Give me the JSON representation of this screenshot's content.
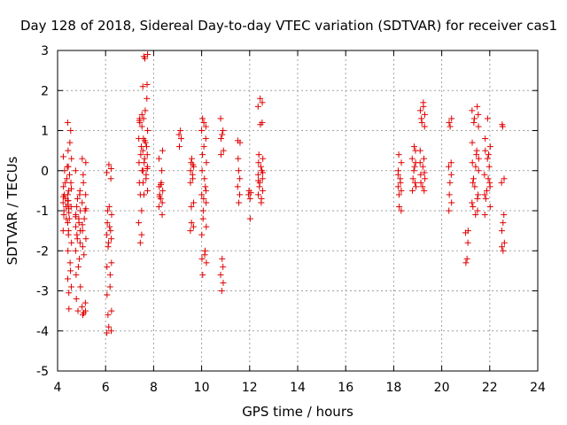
{
  "chart_data": {
    "type": "scatter",
    "title": "Day 128 of 2018, Sidereal Day-to-day VTEC variation (SDTVAR) for receiver cas1",
    "xlabel": "GPS time / hours",
    "ylabel": "SDTVAR / TECUs",
    "xlim": [
      4,
      24
    ],
    "ylim": [
      -5,
      3
    ],
    "xticks": [
      4,
      6,
      8,
      10,
      12,
      14,
      16,
      18,
      20,
      22,
      24
    ],
    "yticks": [
      -5,
      -4,
      -3,
      -2,
      -1,
      0,
      1,
      2,
      3
    ],
    "grid": true,
    "marker": "+",
    "color": "#e00000",
    "clusters": [
      {
        "x": 4.35,
        "spread": 0.12,
        "values": [
          0.35,
          0.1,
          -0.2,
          -0.4,
          -0.5,
          -0.6,
          -0.7,
          -0.75,
          -0.8,
          -0.85,
          -0.9,
          -1.0,
          -1.05,
          -1.1,
          -1.2,
          -1.3,
          -1.5,
          -1.6,
          -0.3,
          0.0,
          -0.95,
          -0.65
        ]
      },
      {
        "x": 4.5,
        "spread": 0.08,
        "values": [
          1.2,
          1.0,
          0.7,
          0.5,
          0.3,
          0.1,
          -0.1,
          -0.3,
          -0.6,
          -0.9,
          -1.2,
          -1.5,
          -1.8,
          -2.0,
          -2.3,
          -2.5,
          -2.7,
          -2.9,
          -3.05,
          -3.45,
          -0.45,
          -0.75
        ]
      },
      {
        "x": 4.85,
        "spread": 0.1,
        "values": [
          0.0,
          -0.5,
          -0.7,
          -0.9,
          -1.0,
          -1.1,
          -1.2,
          -1.3,
          -1.4,
          -1.5,
          -1.6,
          -1.7,
          -1.8,
          -2.0,
          -2.2,
          -2.4,
          -2.6,
          -2.9,
          -3.2,
          -3.5,
          -0.6,
          -1.15
        ]
      },
      {
        "x": 5.1,
        "spread": 0.08,
        "values": [
          0.3,
          0.2,
          -0.1,
          -0.3,
          -0.6,
          -0.8,
          -1.0,
          -1.2,
          -1.5,
          -1.7,
          -1.9,
          -2.1,
          -3.3,
          -3.4,
          -3.5,
          -3.55,
          -3.6,
          -0.95,
          -1.35
        ]
      },
      {
        "x": 6.15,
        "spread": 0.1,
        "values": [
          0.15,
          0.05,
          -0.05,
          -0.2,
          -0.9,
          -1.0,
          -1.1,
          -1.3,
          -1.4,
          -1.5,
          -1.6,
          -1.7,
          -1.8,
          -1.9,
          -2.3,
          -2.4,
          -2.6,
          -2.9,
          -3.1,
          -3.5,
          -3.6,
          -3.9,
          -4.0,
          -4.05
        ]
      },
      {
        "x": 7.45,
        "spread": 0.07,
        "values": [
          1.4,
          1.3,
          1.2,
          1.1,
          0.8,
          0.6,
          0.4,
          0.2,
          0.0,
          -0.3,
          -0.6,
          -1.0,
          -1.3,
          -1.6,
          -1.8,
          1.25
        ]
      },
      {
        "x": 7.65,
        "spread": 0.1,
        "values": [
          2.9,
          2.85,
          2.8,
          2.15,
          2.1,
          1.8,
          1.5,
          1.3,
          1.0,
          0.8,
          0.7,
          0.6,
          0.5,
          0.4,
          0.3,
          0.2,
          0.1,
          0.0,
          -0.1,
          -0.2,
          -0.3,
          -0.5,
          -0.6,
          0.75,
          0.05
        ]
      },
      {
        "x": 8.3,
        "spread": 0.08,
        "values": [
          0.5,
          0.3,
          0.0,
          -0.3,
          -0.4,
          -0.5,
          -0.6,
          -0.7,
          -0.8,
          -0.9,
          -1.1,
          -0.35,
          -0.65
        ]
      },
      {
        "x": 9.1,
        "spread": 0.05,
        "values": [
          1.0,
          0.9,
          0.8,
          0.6
        ]
      },
      {
        "x": 9.6,
        "spread": 0.07,
        "values": [
          0.3,
          0.2,
          0.1,
          0.0,
          -0.1,
          -0.2,
          -0.3,
          -0.8,
          -0.9,
          -1.3,
          -1.4,
          -1.5,
          0.15
        ]
      },
      {
        "x": 10.1,
        "spread": 0.1,
        "values": [
          1.3,
          1.2,
          1.1,
          1.0,
          0.8,
          0.6,
          0.4,
          0.2,
          0.0,
          -0.2,
          -0.4,
          -0.6,
          -0.8,
          -1.0,
          -1.2,
          -1.4,
          -1.6,
          -2.0,
          -2.1,
          -2.2,
          -2.3,
          -2.6,
          -0.7,
          -0.5
        ]
      },
      {
        "x": 10.85,
        "spread": 0.06,
        "values": [
          1.3,
          1.0,
          0.9,
          0.8,
          0.5,
          0.4,
          -2.2,
          -2.4,
          -2.6,
          -2.8,
          -3.0
        ]
      },
      {
        "x": 11.55,
        "spread": 0.05,
        "values": [
          0.75,
          0.7,
          0.3,
          0.0,
          -0.2,
          -0.4,
          -0.6,
          -0.8
        ]
      },
      {
        "x": 12.0,
        "spread": 0.05,
        "values": [
          -0.5,
          -0.55,
          -0.6,
          -0.7,
          -1.2
        ]
      },
      {
        "x": 12.45,
        "spread": 0.1,
        "values": [
          1.8,
          1.7,
          1.6,
          1.2,
          1.15,
          0.4,
          0.3,
          0.2,
          0.1,
          0.0,
          -0.1,
          -0.2,
          -0.3,
          -0.4,
          -0.5,
          -0.6,
          -0.7,
          -0.8,
          -0.25,
          -0.05
        ]
      },
      {
        "x": 18.25,
        "spread": 0.07,
        "values": [
          0.4,
          0.2,
          0.0,
          -0.2,
          -0.3,
          -0.4,
          -0.5,
          -0.6,
          -0.9,
          -1.0,
          -0.1
        ]
      },
      {
        "x": 18.85,
        "spread": 0.08,
        "values": [
          0.6,
          0.5,
          0.3,
          0.2,
          0.0,
          -0.2,
          -0.4,
          -0.5,
          0.1,
          -0.3
        ]
      },
      {
        "x": 19.2,
        "spread": 0.1,
        "values": [
          1.7,
          1.6,
          1.5,
          1.4,
          1.3,
          1.2,
          1.1,
          0.5,
          0.3,
          0.1,
          -0.1,
          -0.2,
          -0.3,
          -0.4,
          -0.5,
          0.2,
          -0.05
        ]
      },
      {
        "x": 20.35,
        "spread": 0.06,
        "values": [
          1.3,
          1.2,
          1.1,
          0.2,
          0.1,
          -0.1,
          -0.3,
          -0.6,
          -0.8,
          -1.0
        ]
      },
      {
        "x": 21.05,
        "spread": 0.06,
        "values": [
          -1.5,
          -1.55,
          -1.8,
          -2.2,
          -2.3
        ]
      },
      {
        "x": 21.4,
        "spread": 0.14,
        "values": [
          1.6,
          1.5,
          1.4,
          1.3,
          1.2,
          1.1,
          0.7,
          0.5,
          0.4,
          0.2,
          0.0,
          -0.2,
          -0.4,
          -0.6,
          -0.8,
          -1.0,
          -1.1,
          -0.9,
          0.3,
          -0.3,
          0.1,
          -0.7
        ]
      },
      {
        "x": 21.9,
        "spread": 0.12,
        "values": [
          1.3,
          0.8,
          0.6,
          0.5,
          0.3,
          0.1,
          -0.1,
          -0.3,
          -0.5,
          -0.7,
          -0.9,
          -1.1,
          -0.2,
          0.4,
          -0.6,
          -0.4
        ]
      },
      {
        "x": 22.55,
        "spread": 0.06,
        "values": [
          1.15,
          1.1,
          -0.2,
          -0.3,
          -1.1,
          -1.3,
          -1.5,
          -1.8,
          -1.9,
          -2.0
        ]
      }
    ]
  }
}
